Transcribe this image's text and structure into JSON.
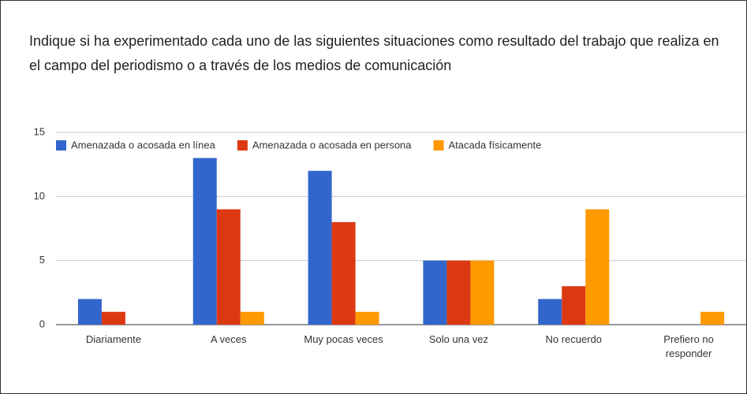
{
  "chart_data": {
    "type": "bar",
    "title": "Indique si ha experimentado cada uno de las siguientes situaciones como resultado del trabajo que realiza en el campo del periodismo o a través de los medios de comunicación",
    "categories": [
      "Diariamente",
      "A veces",
      "Muy pocas veces",
      "Solo una vez",
      "No recuerdo",
      "Prefiero no responder"
    ],
    "series": [
      {
        "name": "Amenazada o acosada en línea",
        "color": "#3366cc",
        "values": [
          2,
          13,
          12,
          5,
          2,
          0
        ]
      },
      {
        "name": "Amenazada o acosada en persona",
        "color": "#dc3912",
        "values": [
          1,
          9,
          8,
          5,
          3,
          0
        ]
      },
      {
        "name": "Atacada físicamente",
        "color": "#ff9900",
        "values": [
          0,
          1,
          1,
          5,
          9,
          1
        ]
      }
    ],
    "ylim": [
      0,
      15
    ],
    "yticks": [
      0,
      5,
      10,
      15
    ],
    "grid": true,
    "legend": "top"
  }
}
